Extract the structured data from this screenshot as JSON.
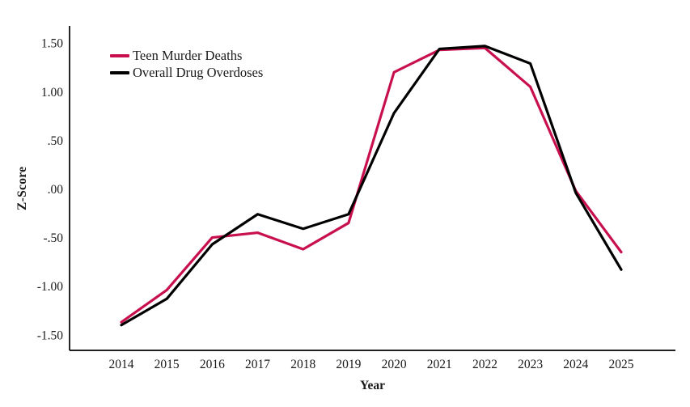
{
  "chart_data": {
    "type": "line",
    "x": [
      2014,
      2015,
      2016,
      2017,
      2018,
      2019,
      2020,
      2021,
      2022,
      2023,
      2024,
      2025
    ],
    "series": [
      {
        "name": "Teen Murder Deaths",
        "color": "#C8104E",
        "values": [
          -1.37,
          -1.04,
          -0.5,
          -0.45,
          -0.62,
          -0.35,
          1.2,
          1.43,
          1.45,
          1.05,
          -0.02,
          -0.65
        ]
      },
      {
        "name": "Overall Drug Overdoses",
        "color": "#000000",
        "values": [
          -1.4,
          -1.13,
          -0.57,
          -0.26,
          -0.41,
          -0.26,
          0.78,
          1.44,
          1.47,
          1.29,
          -0.04,
          -0.83
        ]
      }
    ],
    "title": "",
    "xlabel": "Year",
    "ylabel": "Z-Score",
    "yticks": {
      "labels": [
        "1.50",
        "1.00",
        ".50",
        ".00",
        "-.50",
        "-1.00",
        "-1.50"
      ],
      "values": [
        1.5,
        1.0,
        0.5,
        0.0,
        -0.5,
        -1.0,
        -1.5
      ]
    },
    "ylim": [
      -1.66,
      1.68
    ],
    "grid": false,
    "legend_position": "top-left-inside",
    "axis_color": "#000000"
  }
}
